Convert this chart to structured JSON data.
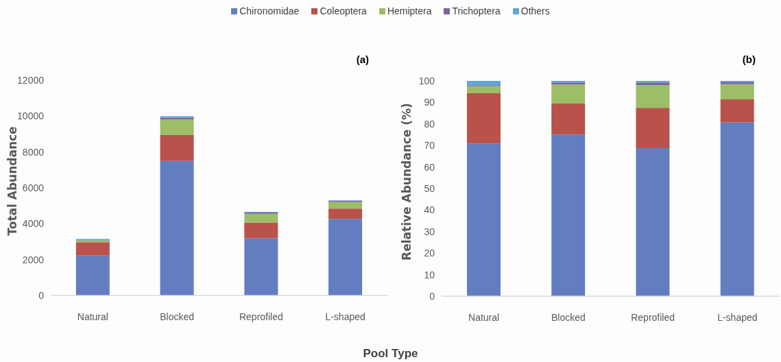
{
  "chart_data": [
    {
      "type": "bar",
      "title": "(a)",
      "xlabel": "Pool Type",
      "ylabel": "Total Abundance",
      "stacked": true,
      "legend": "top",
      "categories": [
        "Natural",
        "Blocked",
        "Reprofiled",
        "L-shaped"
      ],
      "series": [
        {
          "name": "Chironomidae",
          "color": "#627ec0",
          "values": [
            2230,
            7500,
            3190,
            4270
          ]
        },
        {
          "name": "Coleoptera",
          "color": "#b8524b",
          "values": [
            740,
            1440,
            880,
            570
          ]
        },
        {
          "name": "Hemiptera",
          "color": "#9bbe66",
          "values": [
            100,
            880,
            490,
            380
          ]
        },
        {
          "name": "Trichoptera",
          "color": "#7f62a0",
          "values": [
            20,
            100,
            60,
            50
          ]
        },
        {
          "name": "Others",
          "color": "#5fa6d6",
          "values": [
            60,
            70,
            40,
            30
          ]
        }
      ],
      "ylim": [
        0,
        12000
      ],
      "yticks": [
        0,
        2000,
        4000,
        6000,
        8000,
        10000,
        12000
      ]
    },
    {
      "type": "bar",
      "title": "(b)",
      "ylabel": "Relative Abundance (%)",
      "stacked": true,
      "categories": [
        "Natural",
        "Blocked",
        "Reprofiled",
        "L-shaped"
      ],
      "series": [
        {
          "name": "Chironomidae",
          "color": "#627ec0",
          "values": [
            70.9,
            75.1,
            68.8,
            80.7
          ]
        },
        {
          "name": "Coleoptera",
          "color": "#b8524b",
          "values": [
            23.4,
            14.4,
            18.7,
            10.7
          ]
        },
        {
          "name": "Hemiptera",
          "color": "#9bbe66",
          "values": [
            3.2,
            8.8,
            10.6,
            7.1
          ]
        },
        {
          "name": "Trichoptera",
          "color": "#7f62a0",
          "values": [
            0.5,
            1.0,
            1.2,
            0.9
          ]
        },
        {
          "name": "Others",
          "color": "#5fa6d6",
          "values": [
            2.0,
            0.7,
            0.7,
            0.6
          ]
        }
      ],
      "ylim": [
        0,
        100
      ],
      "yticks": [
        0,
        10,
        20,
        30,
        40,
        50,
        60,
        70,
        80,
        90,
        100
      ]
    }
  ]
}
